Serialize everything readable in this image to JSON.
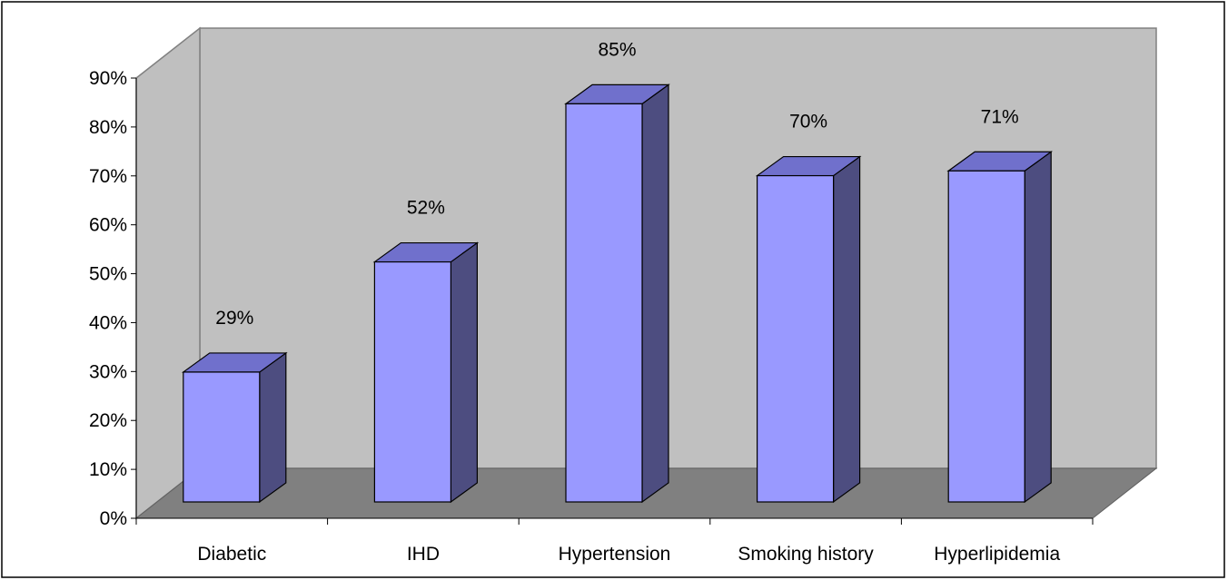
{
  "chart_data": {
    "type": "bar",
    "style": "3d-column",
    "categories": [
      "Diabetic",
      "IHD",
      "Hypertension",
      "Smoking history",
      "Hyperlipidemia"
    ],
    "values": [
      29,
      52,
      85,
      70,
      71
    ],
    "data_labels": [
      "29%",
      "52%",
      "85%",
      "70%",
      "71%"
    ],
    "y_ticks": [
      "0%",
      "10%",
      "20%",
      "30%",
      "40%",
      "50%",
      "60%",
      "70%",
      "80%",
      "90%"
    ],
    "ylim": [
      0,
      90
    ],
    "title": "",
    "xlabel": "",
    "ylabel": "",
    "grid": false,
    "legend": false,
    "colors": {
      "bar_front": "#9999ff",
      "bar_top": "#7070cc",
      "bar_side": "#4d4d80",
      "back_wall": "#c0c0c0",
      "side_wall": "#bfbfbf",
      "floor": "#808080",
      "border": "#000000"
    }
  }
}
